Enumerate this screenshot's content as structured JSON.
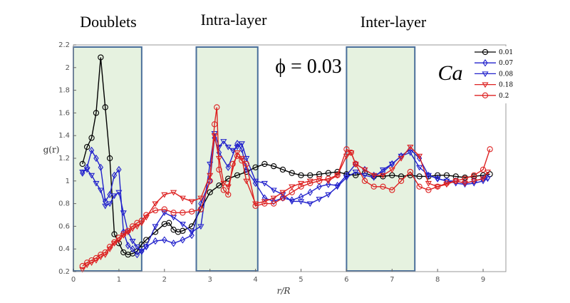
{
  "chart_data": {
    "type": "line",
    "xlabel": "r/R",
    "ylabel": "g(r)",
    "xlim": [
      0,
      9.5
    ],
    "ylim": [
      0.2,
      2.2
    ],
    "xticks": [
      "0",
      "1",
      "2",
      "3",
      "4",
      "5",
      "6",
      "7",
      "8",
      "9"
    ],
    "yticks": [
      "0.2",
      "0.4",
      "0.6",
      "0.8",
      "1",
      "1.2",
      "1.4",
      "1.6",
      "1.8",
      "2",
      "2.2"
    ],
    "grid": false,
    "legend_placement": "top-right",
    "annotations": {
      "phi": "ϕ = 0.03",
      "ca": "Ca",
      "regions": [
        {
          "label": "Doublets",
          "x": [
            0,
            1.5
          ]
        },
        {
          "label": "Intra-layer",
          "x": [
            2.7,
            4.05
          ]
        },
        {
          "label": "Inter-layer",
          "x": [
            6.0,
            7.5
          ]
        }
      ]
    },
    "series": [
      {
        "name": "0.01",
        "color": "#000000",
        "marker": "circle",
        "x": [
          0.2,
          0.3,
          0.4,
          0.5,
          0.6,
          0.7,
          0.8,
          0.9,
          1.0,
          1.1,
          1.2,
          1.3,
          1.4,
          1.5,
          1.6,
          1.8,
          2.0,
          2.1,
          2.2,
          2.3,
          2.4,
          2.6,
          2.8,
          3.0,
          3.2,
          3.4,
          3.6,
          3.8,
          4.0,
          4.2,
          4.4,
          4.6,
          4.8,
          5.0,
          5.2,
          5.4,
          5.6,
          5.8,
          6.0,
          6.2,
          6.4,
          6.6,
          6.8,
          7.0,
          7.2,
          7.4,
          7.6,
          7.8,
          8.0,
          8.2,
          8.4,
          8.6,
          8.8,
          9.0,
          9.15
        ],
        "y": [
          1.15,
          1.3,
          1.38,
          1.6,
          2.09,
          1.65,
          1.2,
          0.53,
          0.45,
          0.37,
          0.35,
          0.36,
          0.38,
          0.44,
          0.48,
          0.55,
          0.62,
          0.63,
          0.57,
          0.55,
          0.56,
          0.6,
          0.75,
          0.9,
          0.96,
          1.02,
          1.05,
          1.08,
          1.12,
          1.15,
          1.13,
          1.1,
          1.07,
          1.05,
          1.05,
          1.06,
          1.07,
          1.08,
          1.06,
          1.05,
          1.07,
          1.04,
          1.04,
          1.05,
          1.04,
          1.05,
          1.04,
          1.04,
          1.05,
          1.05,
          1.04,
          1.03,
          1.04,
          1.05,
          1.06
        ]
      },
      {
        "name": "0.07",
        "color": "#2222cc",
        "marker": "diamond",
        "x": [
          0.2,
          0.3,
          0.4,
          0.5,
          0.6,
          0.7,
          0.8,
          0.9,
          1.0,
          1.1,
          1.2,
          1.3,
          1.4,
          1.5,
          1.6,
          1.8,
          2.0,
          2.2,
          2.4,
          2.6,
          2.8,
          3.0,
          3.1,
          3.2,
          3.4,
          3.6,
          3.7,
          3.8,
          4.0,
          4.2,
          4.4,
          4.6,
          4.8,
          5.0,
          5.2,
          5.4,
          5.6,
          5.8,
          6.0,
          6.2,
          6.4,
          6.6,
          6.8,
          7.0,
          7.2,
          7.4,
          7.6,
          7.8,
          8.0,
          8.2,
          8.4,
          8.6,
          8.8,
          9.0,
          9.1
        ],
        "y": [
          1.07,
          1.12,
          1.27,
          1.2,
          1.12,
          0.82,
          0.88,
          1.05,
          1.1,
          0.55,
          0.43,
          0.4,
          0.35,
          0.38,
          0.42,
          0.47,
          0.48,
          0.45,
          0.48,
          0.52,
          0.8,
          1.0,
          1.38,
          1.25,
          1.12,
          1.33,
          1.28,
          1.1,
          0.98,
          0.85,
          0.82,
          0.85,
          0.83,
          0.86,
          0.9,
          0.95,
          0.97,
          0.96,
          1.05,
          1.15,
          1.1,
          1.05,
          1.08,
          1.15,
          1.22,
          1.28,
          1.2,
          1.05,
          1.02,
          1.0,
          1.0,
          0.98,
          1.0,
          1.02,
          1.03
        ]
      },
      {
        "name": "0.08",
        "color": "#2222cc",
        "marker": "triangle-down",
        "x": [
          0.2,
          0.3,
          0.4,
          0.5,
          0.6,
          0.7,
          0.8,
          0.9,
          1.0,
          1.1,
          1.2,
          1.3,
          1.4,
          1.5,
          1.6,
          1.8,
          2.0,
          2.2,
          2.4,
          2.6,
          2.8,
          3.0,
          3.1,
          3.2,
          3.3,
          3.4,
          3.5,
          3.6,
          3.7,
          3.8,
          4.0,
          4.2,
          4.4,
          4.6,
          4.8,
          5.0,
          5.2,
          5.4,
          5.6,
          5.8,
          6.0,
          6.2,
          6.4,
          6.6,
          6.8,
          7.0,
          7.2,
          7.4,
          7.6,
          7.8,
          8.0,
          8.2,
          8.4,
          8.6,
          8.8,
          9.0,
          9.1
        ],
        "y": [
          1.08,
          1.1,
          1.05,
          0.98,
          0.92,
          0.78,
          0.8,
          0.87,
          0.9,
          0.72,
          0.55,
          0.47,
          0.42,
          0.38,
          0.42,
          0.6,
          0.72,
          0.68,
          0.62,
          0.55,
          0.6,
          1.15,
          1.42,
          1.3,
          1.35,
          1.3,
          1.27,
          1.3,
          1.33,
          1.2,
          1.0,
          0.98,
          0.92,
          0.88,
          0.82,
          0.82,
          0.8,
          0.84,
          0.88,
          0.95,
          1.03,
          1.08,
          1.05,
          1.03,
          1.1,
          1.15,
          1.22,
          1.25,
          1.12,
          1.05,
          1.02,
          1.0,
          0.98,
          0.97,
          0.98,
          1.0,
          1.02
        ]
      },
      {
        "name": "0.18",
        "color": "#dd2222",
        "marker": "triangle-down",
        "x": [
          0.2,
          0.3,
          0.4,
          0.5,
          0.6,
          0.7,
          0.8,
          0.9,
          1.0,
          1.1,
          1.2,
          1.3,
          1.4,
          1.5,
          1.6,
          1.8,
          2.0,
          2.2,
          2.4,
          2.6,
          2.8,
          3.0,
          3.1,
          3.2,
          3.3,
          3.4,
          3.6,
          3.7,
          3.8,
          4.0,
          4.2,
          4.4,
          4.6,
          4.8,
          5.0,
          5.2,
          5.4,
          5.6,
          5.8,
          6.0,
          6.1,
          6.2,
          6.4,
          6.6,
          6.8,
          7.0,
          7.2,
          7.4,
          7.6,
          7.8,
          8.0,
          8.2,
          8.4,
          8.6,
          8.8,
          9.0,
          9.1
        ],
        "y": [
          0.22,
          0.26,
          0.28,
          0.3,
          0.33,
          0.35,
          0.4,
          0.45,
          0.48,
          0.52,
          0.55,
          0.58,
          0.6,
          0.63,
          0.68,
          0.8,
          0.88,
          0.9,
          0.85,
          0.82,
          0.85,
          1.05,
          1.4,
          1.2,
          0.98,
          0.95,
          1.25,
          1.2,
          1.0,
          0.8,
          0.82,
          0.85,
          0.9,
          0.95,
          0.98,
          1.0,
          1.02,
          1.0,
          1.05,
          1.22,
          1.25,
          1.15,
          1.1,
          1.05,
          1.05,
          1.1,
          1.2,
          1.3,
          1.22,
          0.98,
          0.95,
          0.97,
          1.0,
          0.98,
          1.0,
          1.02,
          1.08
        ]
      },
      {
        "name": "0.2",
        "color": "#dd2222",
        "marker": "circle",
        "x": [
          0.2,
          0.3,
          0.4,
          0.5,
          0.6,
          0.7,
          0.8,
          0.9,
          1.0,
          1.1,
          1.2,
          1.3,
          1.4,
          1.5,
          1.6,
          1.8,
          2.0,
          2.2,
          2.4,
          2.6,
          2.8,
          3.0,
          3.1,
          3.15,
          3.2,
          3.3,
          3.4,
          3.5,
          3.6,
          3.7,
          3.8,
          4.0,
          4.2,
          4.4,
          4.6,
          4.8,
          5.0,
          5.2,
          5.4,
          5.6,
          5.8,
          6.0,
          6.1,
          6.2,
          6.4,
          6.6,
          6.8,
          7.0,
          7.2,
          7.4,
          7.6,
          7.8,
          8.0,
          8.2,
          8.4,
          8.6,
          8.8,
          9.0,
          9.15
        ],
        "y": [
          0.25,
          0.28,
          0.3,
          0.32,
          0.35,
          0.37,
          0.42,
          0.46,
          0.5,
          0.53,
          0.56,
          0.6,
          0.63,
          0.65,
          0.7,
          0.74,
          0.75,
          0.72,
          0.72,
          0.73,
          0.75,
          1.0,
          1.5,
          1.65,
          1.1,
          0.92,
          0.88,
          1.15,
          1.22,
          1.18,
          1.15,
          0.78,
          0.8,
          0.8,
          0.85,
          0.9,
          0.95,
          0.98,
          1.0,
          1.02,
          1.05,
          1.28,
          1.25,
          1.15,
          1.0,
          0.95,
          0.95,
          0.92,
          1.0,
          1.08,
          0.95,
          0.92,
          0.95,
          0.98,
          1.0,
          1.02,
          1.05,
          1.1,
          1.28
        ]
      }
    ]
  }
}
